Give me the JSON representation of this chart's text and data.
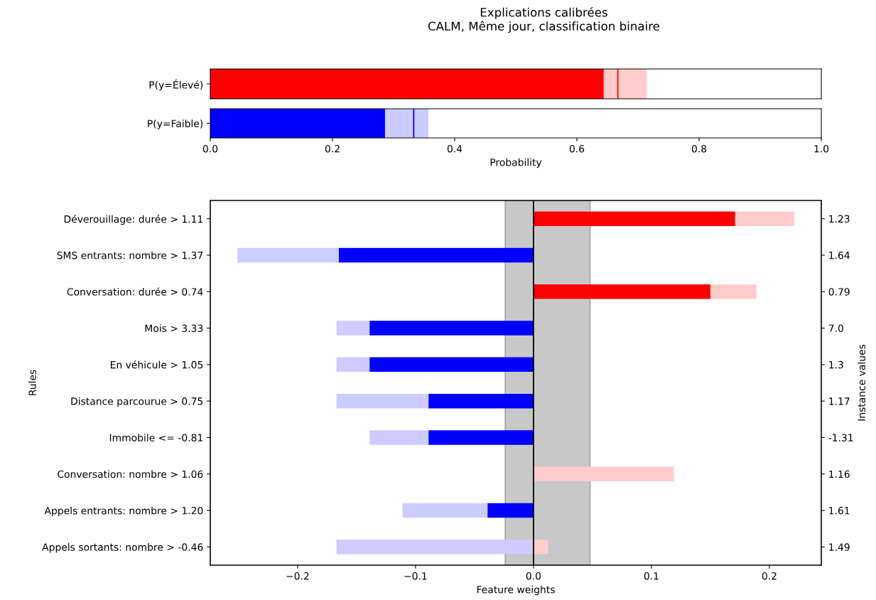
{
  "chart_data": [
    {
      "type": "bar",
      "orientation": "horizontal",
      "stacked": true,
      "title": "Explications calibrées",
      "subtitle": "CALM, Même jour, classification binaire",
      "tick_labels": "y",
      "categories": [
        "P(y=Élevé)"
      ],
      "series": [
        {
          "color": "#ff0000",
          "values": [
            0.644
          ]
        },
        {
          "color": "#ffcccc",
          "values": [
            0.07
          ]
        }
      ],
      "ref_lines": [
        {
          "axis": "x",
          "value": 0.667,
          "color": "#ff0000"
        }
      ],
      "xlim": [
        0,
        1
      ]
    },
    {
      "type": "bar",
      "orientation": "horizontal",
      "stacked": true,
      "xlabel": "Probability",
      "categories": [
        "P(y=Faible)"
      ],
      "series": [
        {
          "color": "#0000ff",
          "values": [
            0.286
          ]
        },
        {
          "color": "#ccccff",
          "values": [
            0.071
          ]
        }
      ],
      "ref_lines": [
        {
          "axis": "x",
          "value": 0.333,
          "color": "#0000ff"
        }
      ],
      "xlim": [
        0,
        1
      ],
      "xticks": [
        {
          "value": 0,
          "label": "0.0"
        },
        {
          "value": 0.2,
          "label": "0.2"
        },
        {
          "value": 0.4,
          "label": "0.4"
        },
        {
          "value": 0.6,
          "label": "0.6"
        },
        {
          "value": 0.8,
          "label": "0.8"
        },
        {
          "value": 1,
          "label": "1.0"
        }
      ]
    },
    {
      "type": "bar",
      "orientation": "horizontal",
      "stacked": true,
      "xlabel": "Feature weights",
      "ylabel": "Rules",
      "y2label": "Instance values",
      "categories": [
        "Déverouillage: durée > 1.11",
        "SMS entrants: nombre > 1.37",
        "Conversation: durée > 0.74",
        "Mois > 3.33",
        "En véhicule > 1.05",
        "Distance parcourue > 0.75",
        "Immobile <= -0.81",
        "Conversation: nombre > 1.06",
        "Appels entrants: nombre > 1.20",
        "Appels sortants: nombre > -0.46"
      ],
      "y2_categories": [
        "1.23",
        "1.64",
        "0.79",
        "7.0",
        "1.3",
        "1.17",
        "-1.31",
        "1.16",
        "1.61",
        "1.49"
      ],
      "series": [
        {
          "color": "#ff0000",
          "values": [
            0.171,
            null,
            0.15,
            null,
            null,
            null,
            null,
            null,
            null,
            null
          ]
        },
        {
          "color": "#0000ff",
          "values": [
            null,
            -0.165,
            null,
            -0.139,
            -0.139,
            -0.089,
            -0.089,
            null,
            -0.039,
            null
          ]
        },
        {
          "color": "#ffcccc",
          "values": [
            0.05,
            null,
            0.039,
            null,
            null,
            null,
            null,
            0.119,
            null,
            0.0125
          ]
        },
        {
          "color": "#ccccff",
          "values": [
            null,
            -0.086,
            null,
            -0.028,
            -0.028,
            -0.078,
            -0.05,
            null,
            -0.072,
            -0.167
          ]
        }
      ],
      "bands": [
        {
          "axis": "x",
          "from": -0.024,
          "to": 0.048,
          "color": "#c8c8c8"
        }
      ],
      "ref_lines": [
        {
          "axis": "x",
          "value": 0,
          "color": "#000000"
        }
      ],
      "xlim": [
        -0.274,
        0.244
      ],
      "xticks": [
        {
          "value": -0.2,
          "label": "−0.2"
        },
        {
          "value": -0.1,
          "label": "−0.1"
        },
        {
          "value": 0,
          "label": "0.0"
        },
        {
          "value": 0.1,
          "label": "0.1"
        },
        {
          "value": 0.2,
          "label": "0.2"
        }
      ]
    }
  ]
}
